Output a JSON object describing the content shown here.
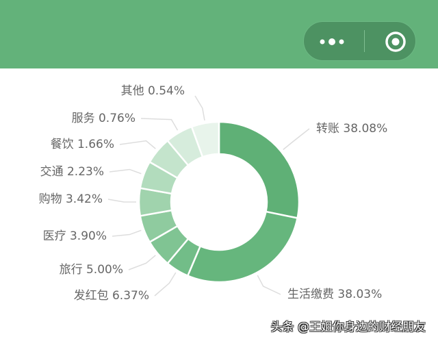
{
  "header": {
    "background": "#63b27a",
    "menu_icon": "more-dots-icon",
    "close_icon": "target-circle-icon"
  },
  "chart_data": {
    "type": "pie",
    "donut": true,
    "categories": [
      "转账",
      "生活缴费",
      "发红包",
      "旅行",
      "医疗",
      "购物",
      "交通",
      "餐饮",
      "服务",
      "其他"
    ],
    "values": [
      38.08,
      38.03,
      6.37,
      5.0,
      3.9,
      3.42,
      2.23,
      1.66,
      0.76,
      0.54
    ],
    "labels": [
      "转账 38.08%",
      "生活缴费 38.03%",
      "发红包 6.37%",
      "旅行 5.00%",
      "医疗 3.90%",
      "购物 3.42%",
      "交通 2.23%",
      "餐饮 1.66%",
      "服务 0.76%",
      "其他 0.54%"
    ],
    "colors": [
      "#5fb076",
      "#66b67d",
      "#72bd88",
      "#80c493",
      "#8fcb9f",
      "#a0d3ad",
      "#b2dcbd",
      "#c4e4cc",
      "#d6ecdc",
      "#e8f4eb"
    ]
  },
  "watermark": "头条 @王姐你身边的财经朋友"
}
